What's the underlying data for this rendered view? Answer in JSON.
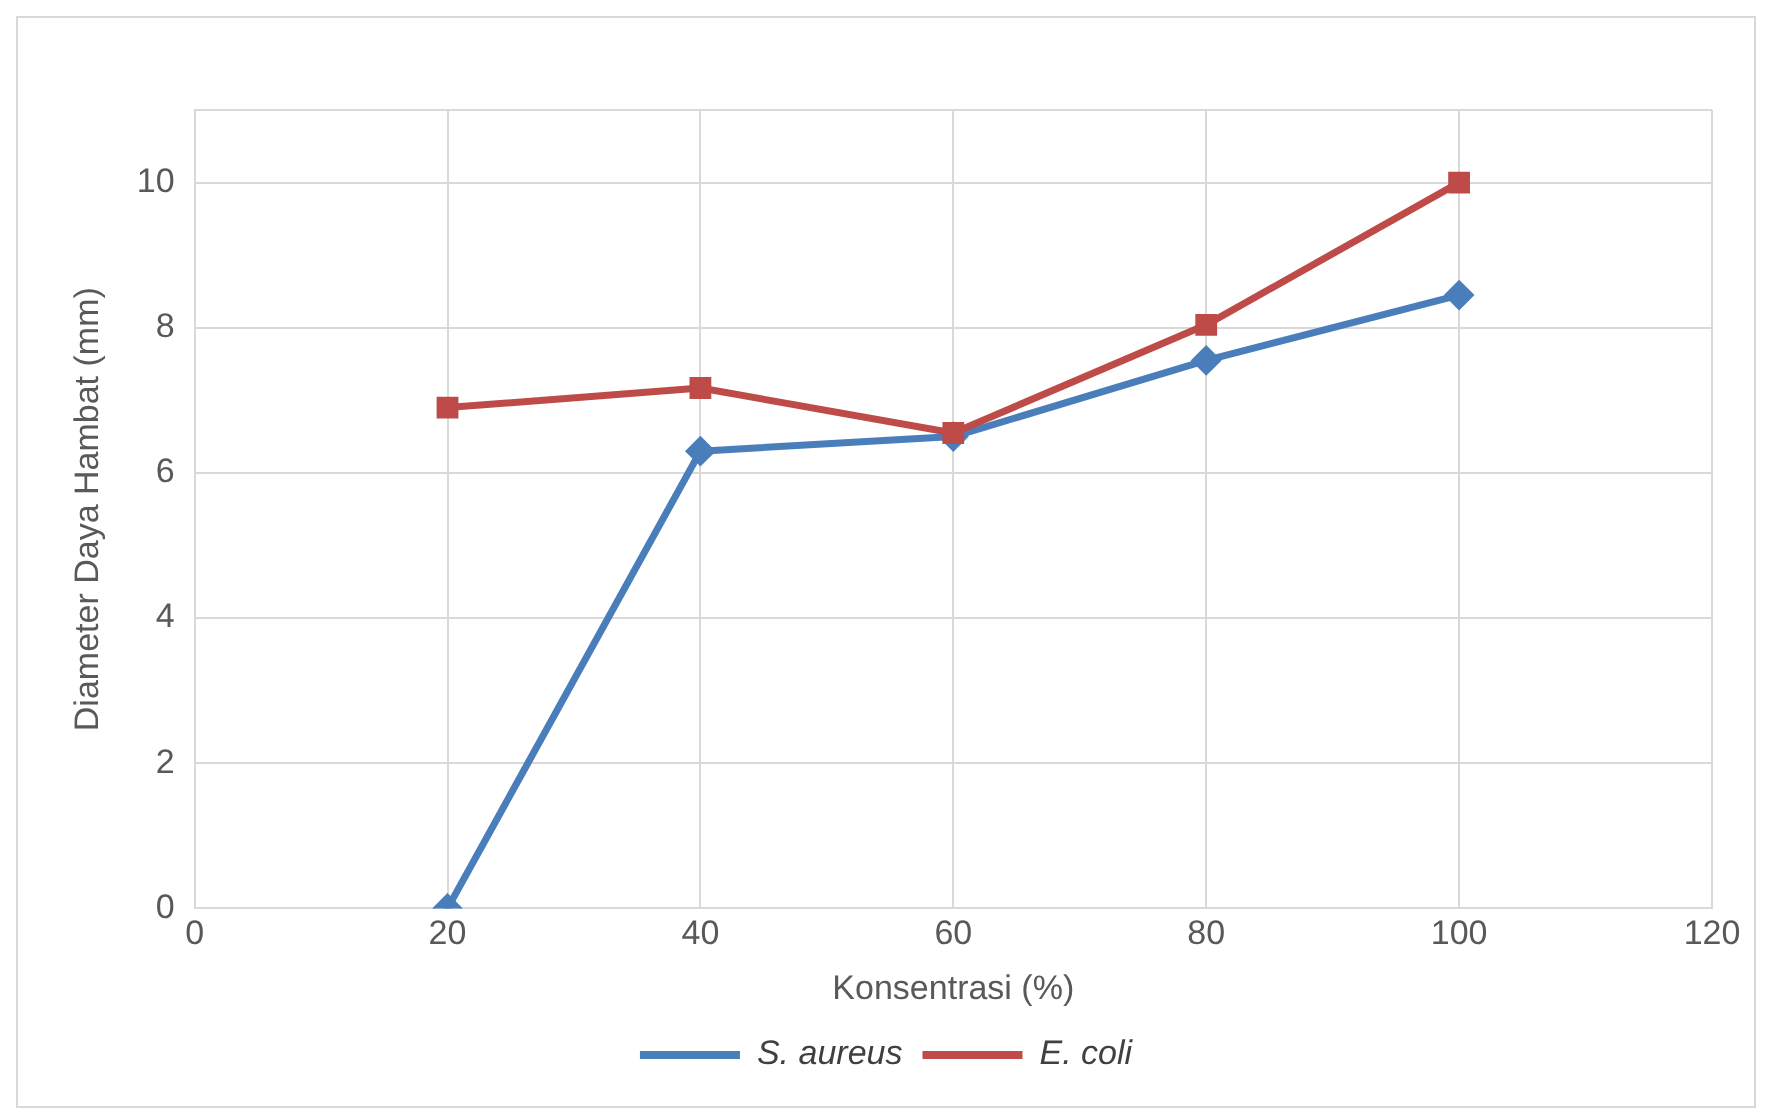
{
  "chart_data": {
    "type": "line",
    "xlabel": "Konsentrasi (%)",
    "ylabel": "Diameter Daya Hambat (mm)",
    "x": [
      20,
      40,
      60,
      80,
      100
    ],
    "series": [
      {
        "name": "S. aureus",
        "color": "#4a7ebb",
        "marker": "diamond",
        "values": [
          0,
          6.3,
          6.5,
          7.55,
          8.45
        ]
      },
      {
        "name": "E. coli",
        "color": "#be4b48",
        "marker": "square",
        "values": [
          6.9,
          7.17,
          6.55,
          8.04,
          10
        ]
      }
    ],
    "xlim": [
      0,
      120
    ],
    "xticks": [
      0,
      20,
      40,
      60,
      80,
      100,
      120
    ],
    "ylim": [
      0,
      11
    ],
    "yticks": [
      0,
      2,
      4,
      6,
      8,
      10,
      {
        "value": 11,
        "label": null
      }
    ],
    "grid": true,
    "legend": "bottom",
    "line_style": "solid"
  }
}
